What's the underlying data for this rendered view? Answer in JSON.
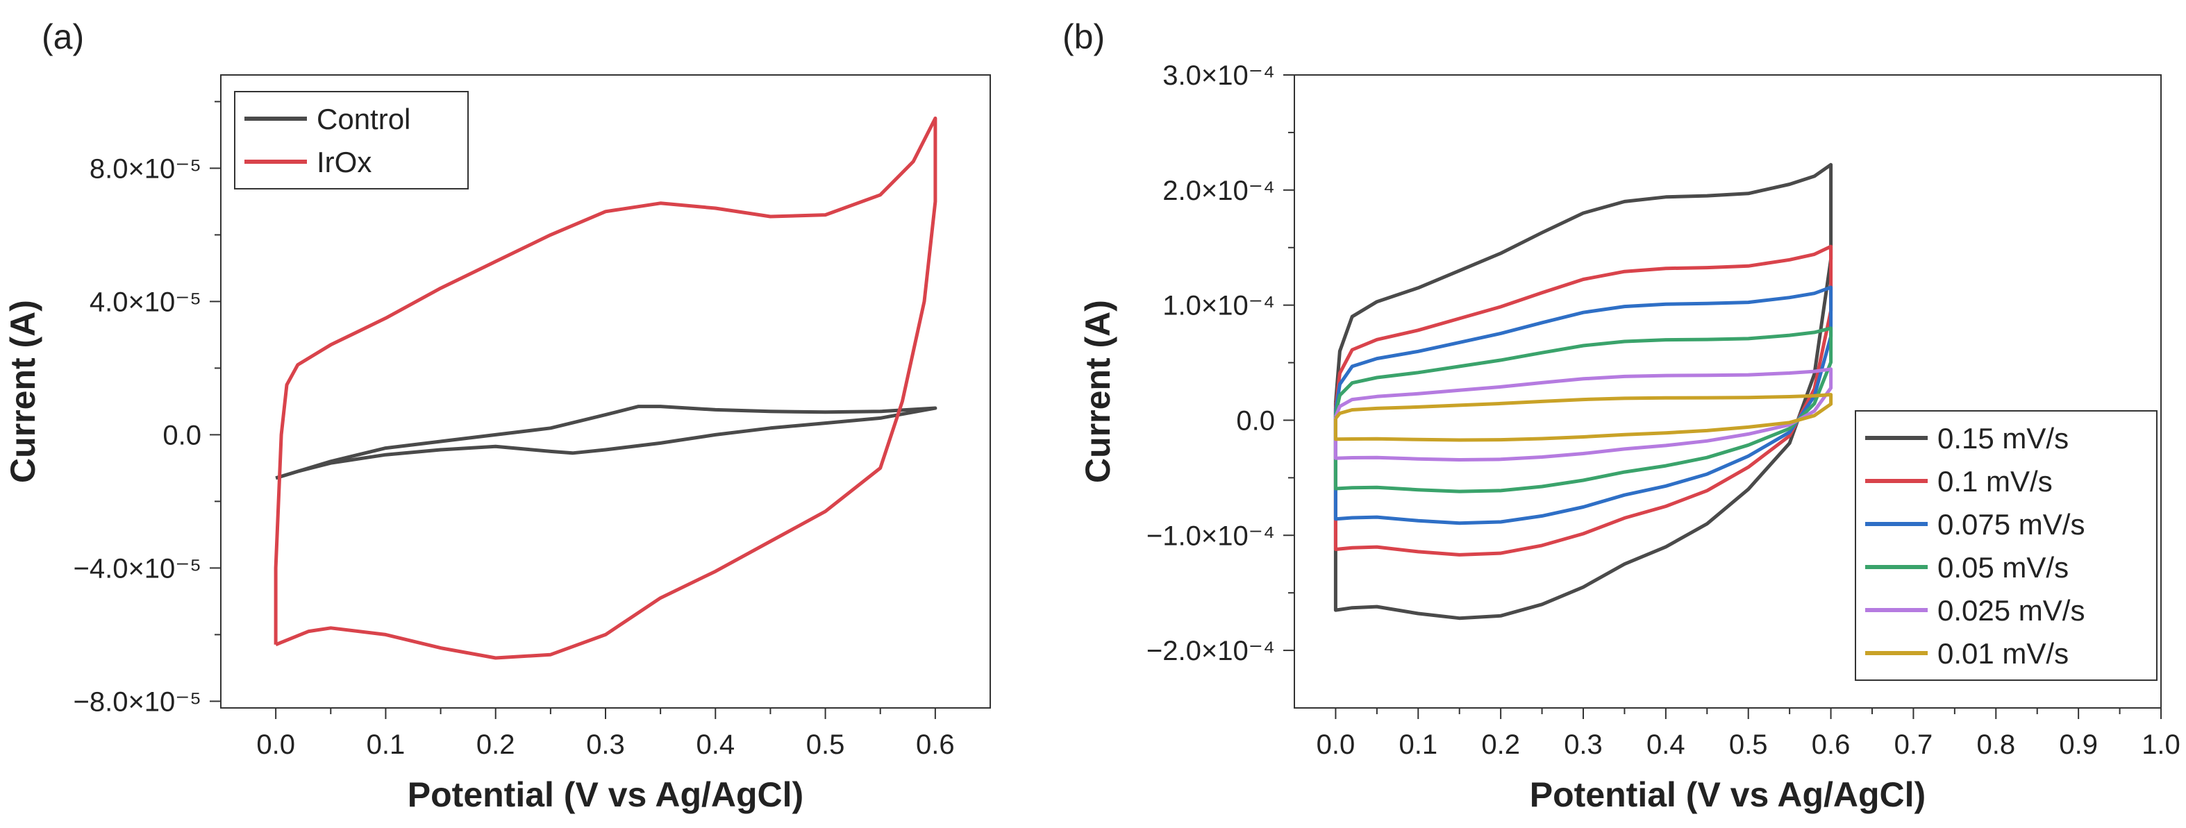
{
  "chart_data": [
    {
      "type": "line",
      "panel_label": "(a)",
      "xlabel": "Potential (V vs Ag/AgCl)",
      "ylabel": "Current (A)",
      "xlim": [
        -0.05,
        0.65
      ],
      "ylim": [
        -8.2e-05,
        0.000108
      ],
      "xticks": [
        0.0,
        0.1,
        0.2,
        0.3,
        0.4,
        0.5,
        0.6
      ],
      "xtick_labels": [
        "0.0",
        "0.1",
        "0.2",
        "0.3",
        "0.4",
        "0.5",
        "0.6"
      ],
      "yticks": [
        -8e-05,
        -4e-05,
        0,
        4e-05,
        8e-05
      ],
      "ytick_labels": [
        "−8.0×10⁻⁵",
        "−4.0×10⁻⁵",
        "0.0",
        "4.0×10⁻⁵",
        "8.0×10⁻⁵"
      ],
      "legend_position": "top-left",
      "series": [
        {
          "name": "Control",
          "color": "#4a4a4a",
          "x": [
            0.0,
            0.02,
            0.05,
            0.1,
            0.15,
            0.2,
            0.25,
            0.3,
            0.33,
            0.35,
            0.4,
            0.45,
            0.5,
            0.55,
            0.6,
            0.6,
            0.55,
            0.5,
            0.45,
            0.4,
            0.35,
            0.3,
            0.27,
            0.25,
            0.2,
            0.15,
            0.1,
            0.05,
            0.02,
            0.0
          ],
          "y": [
            -1.3e-05,
            -1.1e-05,
            -8e-06,
            -4e-06,
            -2e-06,
            0.0,
            2e-06,
            6e-06,
            8.5e-06,
            8.5e-06,
            7.5e-06,
            7e-06,
            6.8e-06,
            7e-06,
            8e-06,
            8e-06,
            5e-06,
            3.5e-06,
            2e-06,
            0.0,
            -2.5e-06,
            -4.5e-06,
            -5.5e-06,
            -5e-06,
            -3.5e-06,
            -4.5e-06,
            -6e-06,
            -8.5e-06,
            -1.1e-05,
            -1.3e-05
          ]
        },
        {
          "name": "IrOx",
          "color": "#d9434b",
          "x": [
            0.0,
            0.0,
            0.005,
            0.01,
            0.02,
            0.05,
            0.1,
            0.15,
            0.2,
            0.25,
            0.3,
            0.35,
            0.4,
            0.45,
            0.5,
            0.55,
            0.58,
            0.6,
            0.6,
            0.59,
            0.57,
            0.55,
            0.5,
            0.45,
            0.4,
            0.35,
            0.3,
            0.25,
            0.2,
            0.15,
            0.1,
            0.05,
            0.03,
            0.0
          ],
          "y": [
            -6.3e-05,
            -4e-05,
            0.0,
            1.5e-05,
            2.1e-05,
            2.7e-05,
            3.5e-05,
            4.4e-05,
            5.2e-05,
            6e-05,
            6.7e-05,
            6.95e-05,
            6.8e-05,
            6.55e-05,
            6.6e-05,
            7.2e-05,
            8.2e-05,
            9.5e-05,
            7e-05,
            4e-05,
            1e-05,
            -1e-05,
            -2.3e-05,
            -3.2e-05,
            -4.1e-05,
            -4.9e-05,
            -6e-05,
            -6.6e-05,
            -6.7e-05,
            -6.4e-05,
            -6e-05,
            -5.8e-05,
            -5.9e-05,
            -6.3e-05
          ]
        }
      ]
    },
    {
      "type": "line",
      "panel_label": "(b)",
      "xlabel": "Potential (V vs Ag/AgCl)",
      "ylabel": "Current (A)",
      "xlim": [
        -0.05,
        1.0
      ],
      "ylim": [
        -0.00025,
        0.0003
      ],
      "xticks": [
        0.0,
        0.1,
        0.2,
        0.3,
        0.4,
        0.5,
        0.6,
        0.7,
        0.8,
        0.9,
        1.0
      ],
      "xtick_labels": [
        "0.0",
        "0.1",
        "0.2",
        "0.3",
        "0.4",
        "0.5",
        "0.6",
        "0.7",
        "0.8",
        "0.9",
        "1.0"
      ],
      "yticks": [
        -0.0002,
        -0.0001,
        0,
        0.0001,
        0.0002,
        0.0003
      ],
      "ytick_labels": [
        "−2.0×10⁻⁴",
        "−1.0×10⁻⁴",
        "0.0",
        "1.0×10⁻⁴",
        "2.0×10⁻⁴",
        "3.0×10⁻⁴"
      ],
      "legend_position": "bottom-right",
      "series": [
        {
          "name": "0.15 mV/s",
          "color": "#4a4a4a",
          "amp": 1.0
        },
        {
          "name": "0.1 mV/s",
          "color": "#d9434b",
          "amp": 0.68
        },
        {
          "name": "0.075 mV/s",
          "color": "#2e6fc6",
          "amp": 0.52
        },
        {
          "name": "0.05 mV/s",
          "color": "#3aa36b",
          "amp": 0.36
        },
        {
          "name": "0.025 mV/s",
          "color": "#b57be0",
          "amp": 0.2
        },
        {
          "name": "0.01 mV/s",
          "color": "#c9a227",
          "amp": 0.1
        }
      ],
      "reference_cycle": {
        "x": [
          0.0,
          0.005,
          0.02,
          0.05,
          0.1,
          0.15,
          0.2,
          0.25,
          0.3,
          0.35,
          0.4,
          0.45,
          0.5,
          0.55,
          0.58,
          0.6,
          0.6,
          0.58,
          0.55,
          0.5,
          0.45,
          0.4,
          0.35,
          0.3,
          0.25,
          0.2,
          0.15,
          0.1,
          0.05,
          0.02,
          0.0,
          0.0
        ],
        "y": [
          1.5e-05,
          6e-05,
          9e-05,
          0.000103,
          0.000115,
          0.00013,
          0.000145,
          0.000163,
          0.00018,
          0.00019,
          0.000194,
          0.000195,
          0.000197,
          0.000205,
          0.000212,
          0.000222,
          0.00014,
          4e-05,
          -2e-05,
          -6e-05,
          -9e-05,
          -0.00011,
          -0.000125,
          -0.000145,
          -0.00016,
          -0.00017,
          -0.000172,
          -0.000168,
          -0.000162,
          -0.000163,
          -0.000165,
          1.5e-05
        ]
      }
    }
  ]
}
